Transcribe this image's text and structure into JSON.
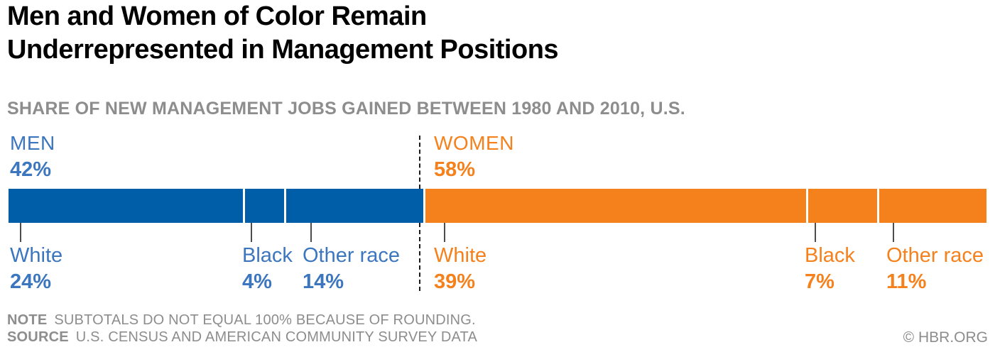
{
  "title": {
    "line1": "Men and Women of Color Remain",
    "line2": "Underrepresented in Management Positions"
  },
  "subtitle": "SHARE OF NEW MANAGEMENT JOBS GAINED BETWEEN 1980 AND 2010, U.S.",
  "colors": {
    "men_bar": "#005da8",
    "men_text": "#3c76bf",
    "women_bar": "#f5811d",
    "women_text": "#f5811d",
    "footnote_gray": "#8d8d8d",
    "leader_line": "#4d4d4d",
    "divider_dash": "#1b1b1b"
  },
  "chart_data": {
    "type": "bar",
    "variant": "stacked-horizontal-100-percent",
    "unit": "%",
    "xlim": [
      0,
      100
    ],
    "grid": false,
    "legend": "inline-labels",
    "categories": [
      "White",
      "Black",
      "Other race"
    ],
    "groups": [
      {
        "name": "Men",
        "display_name": "MEN",
        "total": 42,
        "total_pct": "42%",
        "color": "#005da8",
        "segments": [
          {
            "label": "White",
            "value": 24,
            "pct": "24%"
          },
          {
            "label": "Black",
            "value": 4,
            "pct": "4%"
          },
          {
            "label": "Other race",
            "value": 14,
            "pct": "14%"
          }
        ]
      },
      {
        "name": "Women",
        "display_name": "WOMEN",
        "total": 58,
        "total_pct": "58%",
        "color": "#f5811d",
        "segments": [
          {
            "label": "White",
            "value": 39,
            "pct": "39%"
          },
          {
            "label": "Black",
            "value": 7,
            "pct": "7%"
          },
          {
            "label": "Other race",
            "value": 11,
            "pct": "11%"
          }
        ]
      }
    ]
  },
  "note": {
    "label": "NOTE",
    "text": "SUBTOTALS DO NOT EQUAL 100% BECAUSE OF ROUNDING."
  },
  "source": {
    "label": "SOURCE",
    "text": "U.S. CENSUS AND AMERICAN COMMUNITY SURVEY DATA"
  },
  "credit": "© HBR.ORG"
}
